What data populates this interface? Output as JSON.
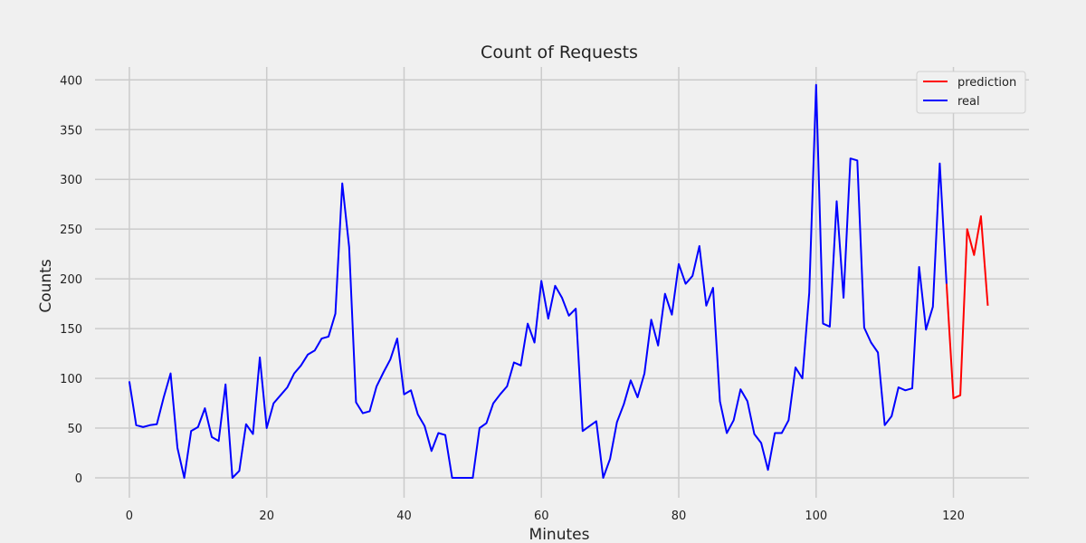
{
  "chart_data": {
    "type": "line",
    "title": "Count of Requests",
    "xlabel": "Minutes",
    "ylabel": "Counts",
    "xlim": [
      -5,
      131
    ],
    "ylim": [
      -20,
      413
    ],
    "x_ticks": [
      0,
      20,
      40,
      60,
      80,
      100,
      120
    ],
    "y_ticks": [
      0,
      50,
      100,
      150,
      200,
      250,
      300,
      350,
      400
    ],
    "grid": true,
    "legend_position": "top-right",
    "series": [
      {
        "name": "prediction",
        "color": "#ff0000",
        "x": [
          119,
          120,
          121,
          122,
          123,
          124,
          125
        ],
        "values": [
          195,
          80,
          83,
          250,
          224,
          263,
          173
        ]
      },
      {
        "name": "real",
        "color": "#0000ff",
        "x": [
          0,
          1,
          2,
          3,
          4,
          5,
          6,
          7,
          8,
          9,
          10,
          11,
          12,
          13,
          14,
          15,
          16,
          17,
          18,
          19,
          20,
          21,
          22,
          23,
          24,
          25,
          26,
          27,
          28,
          29,
          30,
          31,
          32,
          33,
          34,
          35,
          36,
          37,
          38,
          39,
          40,
          41,
          42,
          43,
          44,
          45,
          46,
          47,
          48,
          49,
          50,
          51,
          52,
          53,
          54,
          55,
          56,
          57,
          58,
          59,
          60,
          61,
          62,
          63,
          64,
          65,
          66,
          67,
          68,
          69,
          70,
          71,
          72,
          73,
          74,
          75,
          76,
          77,
          78,
          79,
          80,
          81,
          82,
          83,
          84,
          85,
          86,
          87,
          88,
          89,
          90,
          91,
          92,
          93,
          94,
          95,
          96,
          97,
          98,
          99,
          100,
          101,
          102,
          103,
          104,
          105,
          106,
          107,
          108,
          109,
          110,
          111,
          112,
          113,
          114,
          115,
          116,
          117,
          118,
          119
        ],
        "values": [
          97,
          53,
          51,
          53,
          54,
          81,
          105,
          30,
          0,
          47,
          51,
          70,
          41,
          37,
          94,
          0,
          7,
          54,
          44,
          121,
          50,
          75,
          83,
          91,
          105,
          113,
          124,
          128,
          140,
          142,
          165,
          296,
          232,
          76,
          65,
          67,
          92,
          106,
          119,
          140,
          84,
          88,
          64,
          52,
          27,
          45,
          43,
          0,
          0,
          0,
          0,
          50,
          55,
          75,
          84,
          92,
          116,
          113,
          155,
          136,
          198,
          160,
          193,
          181,
          163,
          170,
          47,
          52,
          57,
          0,
          19,
          56,
          74,
          98,
          81,
          105,
          159,
          133,
          185,
          164,
          215,
          195,
          203,
          233,
          173,
          191,
          77,
          45,
          58,
          89,
          77,
          44,
          35,
          8,
          45,
          45,
          58,
          111,
          100,
          186,
          395,
          155,
          152,
          278,
          181,
          321,
          319,
          151,
          136,
          126,
          53,
          62,
          91,
          88,
          90,
          212,
          149,
          172,
          316,
          195
        ]
      }
    ]
  }
}
